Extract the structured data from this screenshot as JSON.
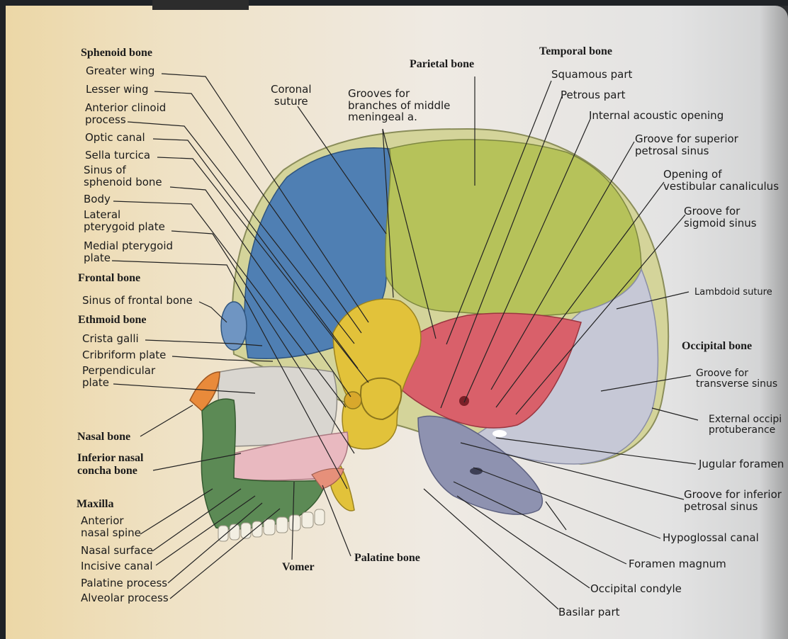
{
  "labels": {
    "sphenoid_bone": "Sphenoid bone",
    "greater_wing": "Greater wing",
    "lesser_wing": "Lesser wing",
    "anterior_clinoid_process": "Anterior clinoid\nprocess",
    "optic_canal": "Optic canal",
    "sella_turcica": "Sella turcica",
    "sinus_of_sphenoid_bone": "Sinus of\nsphenoid bone",
    "body": "Body",
    "lateral_pterygoid_plate": "Lateral\npterygoid plate",
    "medial_pterygoid_plate": "Medial pterygoid\nplate",
    "frontal_bone": "Frontal bone",
    "sinus_of_frontal_bone": "Sinus of frontal bone",
    "ethmoid_bone": "Ethmoid bone",
    "crista_galli": "Crista galli",
    "cribriform_plate": "Cribriform plate",
    "perpendicular_plate": "Perpendicular\nplate",
    "nasal_bone": "Nasal bone",
    "inferior_nasal_concha_bone": "Inferior nasal\nconcha bone",
    "maxilla": "Maxilla",
    "anterior_nasal_spine": "Anterior\nnasal spine",
    "nasal_surface": "Nasal surface",
    "incisive_canal": "Incisive canal",
    "palatine_process": "Palatine process",
    "alveolar_process": "Alveolar process",
    "coronal_suture": "Coronal\nsuture",
    "grooves_middle_meningeal": "Grooves for\nbranches of middle\nmeningeal a.",
    "parietal_bone": "Parietal bone",
    "vomer": "Vomer",
    "palatine_bone": "Palatine bone",
    "temporal_bone": "Temporal bone",
    "squamous_part": "Squamous part",
    "petrous_part": "Petrous part",
    "internal_acoustic_opening": "Internal acoustic opening",
    "groove_superior_petrosal_sinus": "Groove for superior\npetrosal sinus",
    "opening_vestibular_canaliculus": "Opening of\nvestibular canaliculus",
    "groove_sigmoid_sinus": "Groove for\nsigmoid sinus",
    "lambdoid_suture": "Lambdoid suture",
    "occipital_bone": "Occipital bone",
    "groove_transverse_sinus": "Groove for\ntransverse sinus",
    "external_occipital_protuberance": "External occipi\nprotuberance",
    "jugular_foramen": "Jugular foramen",
    "groove_inferior_petrosal_sinus": "Groove for inferior\npetrosal sinus",
    "hypoglossal_canal": "Hypoglossal canal",
    "foramen_magnum": "Foramen magnum",
    "occipital_condyle": "Occipital condyle",
    "basilar_part": "Basilar part"
  },
  "colors": {
    "parietal": "#b6c25a",
    "frontal": "#4f7fb3",
    "sphenoid": "#e2c23a",
    "temporal": "#d9606a",
    "occipital": "#9aa0b6",
    "ethmoid": "#d9d6d0",
    "maxilla": "#5c8a55",
    "vomer": "#e9b9c0",
    "nasal": "#e98a3a",
    "leader": "#222222"
  }
}
